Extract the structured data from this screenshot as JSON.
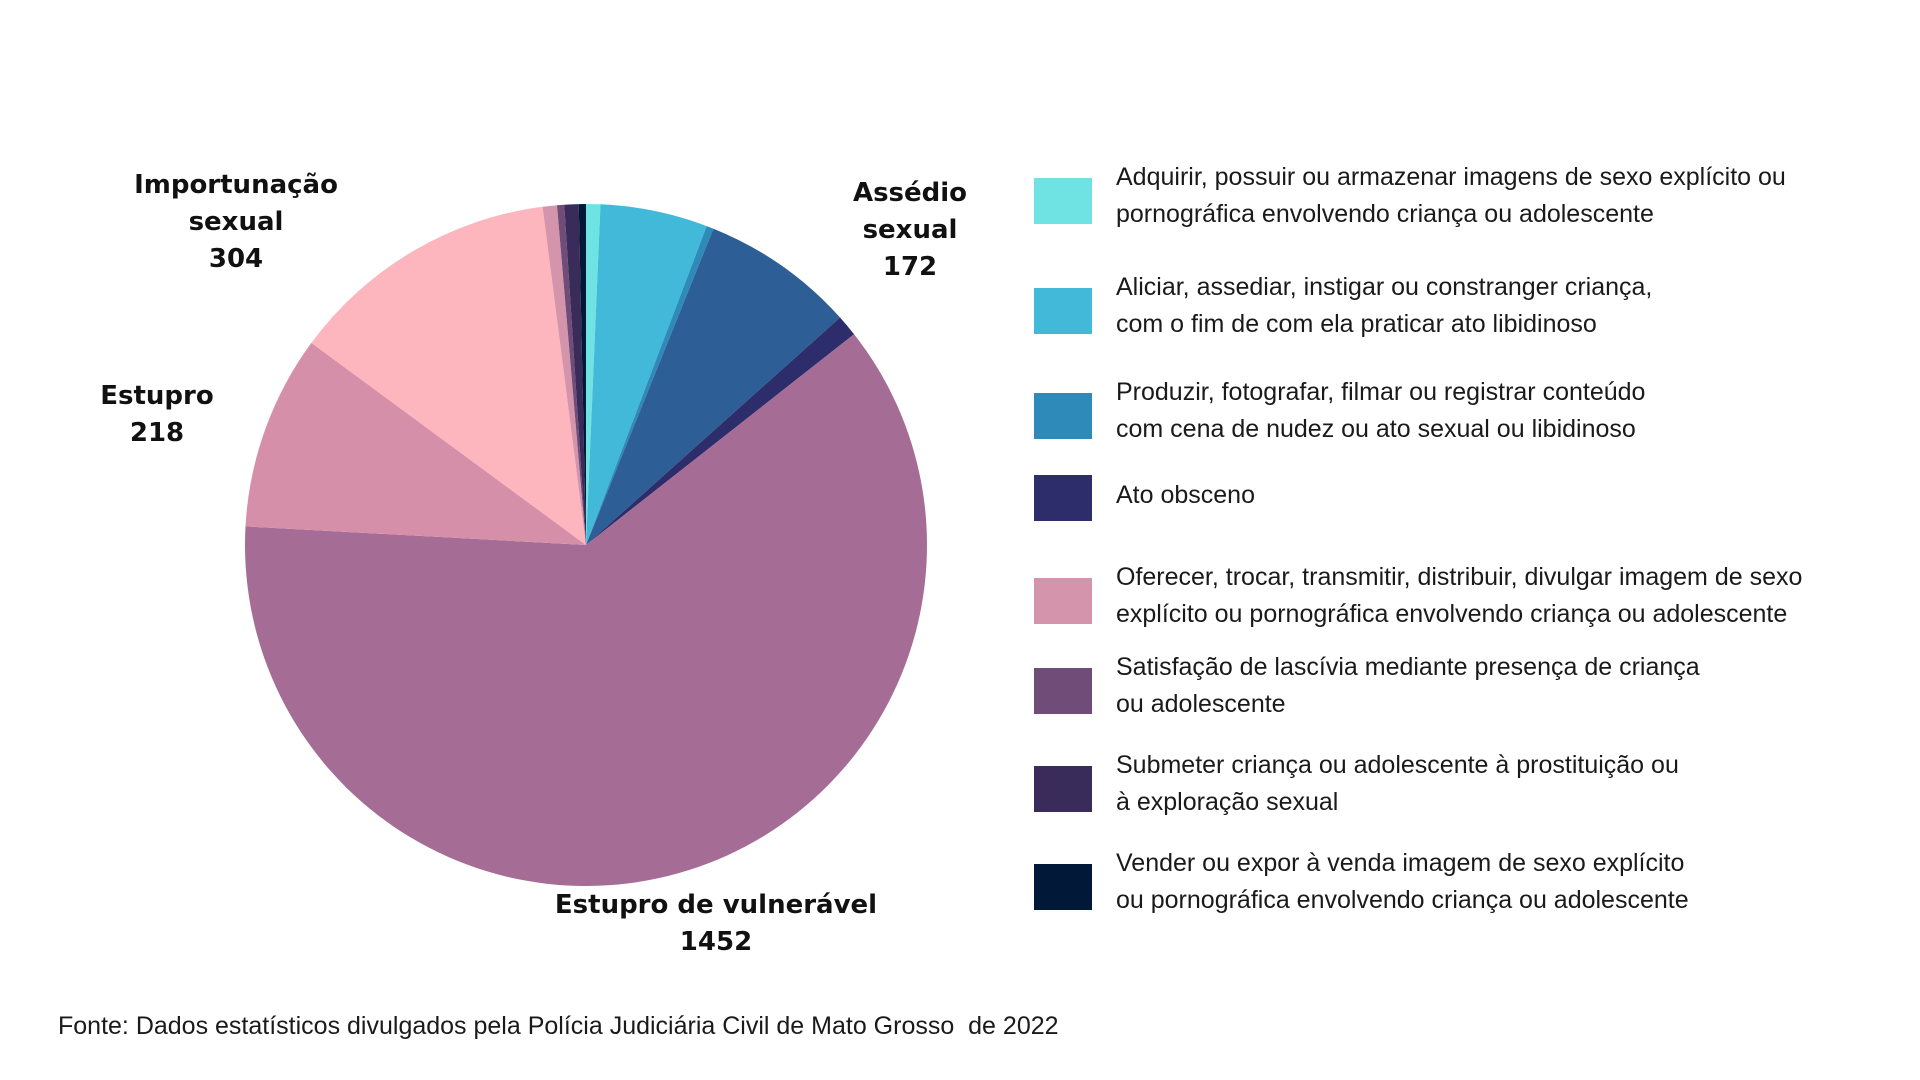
{
  "chart_data": {
    "type": "pie",
    "start_angle_deg": 0,
    "direction": "clockwise",
    "slices": [
      {
        "category": "Adquirir, possuir ou armazenar imagens de sexo explícito ou pornográfica envolvendo criança ou adolescente",
        "value": 16,
        "color": "#6fe3e3"
      },
      {
        "category": "Aliciar, assediar, instigar ou constranger criança, com o fim de com ela praticar ato libidinoso",
        "value": 120,
        "color": "#42b9d8"
      },
      {
        "category": "Produzir, fotografar, filmar ou registrar conteúdo com cena de nudez ou ato sexual ou libidinoso",
        "value": 8,
        "color": "#2e8ab8"
      },
      {
        "category": "Assédio sexual",
        "value": 172,
        "color": "#2e5e96"
      },
      {
        "category": "Ato obsceno",
        "value": 24,
        "color": "#2e2d6b"
      },
      {
        "category": "Estupro de vulnerável",
        "value": 1452,
        "color": "#a56d95"
      },
      {
        "category": "Estupro",
        "value": 218,
        "color": "#d68fa8"
      },
      {
        "category": "Importunação sexual",
        "value": 304,
        "color": "#fdb6bd"
      },
      {
        "category": "Oferecer, trocar, transmitir, distribuir, divulgar imagem de sexo explícito ou pornográfica envolvendo criança ou adolescente",
        "value": 16,
        "color": "#d494ab"
      },
      {
        "category": "Satisfação de lascívia mediante presença de criança ou adolescente",
        "value": 8,
        "color": "#704c78"
      },
      {
        "category": "Submeter criança ou adolescente à prostituição ou à exploração sexual",
        "value": 16,
        "color": "#3a2c5a"
      },
      {
        "category": "Vender ou expor à venda imagem de sexo explícito ou pornográfica envolvendo criança ou adolescente",
        "value": 8,
        "color": "#021838"
      }
    ],
    "data_labels": [
      {
        "name_lines": [
          "Assédio",
          "sexual"
        ],
        "value": "172"
      },
      {
        "name_lines": [
          "Estupro de vulnerável"
        ],
        "value": "1452"
      },
      {
        "name_lines": [
          "Estupro"
        ],
        "value": "218"
      },
      {
        "name_lines": [
          "Importunação",
          "sexual"
        ],
        "value": "304"
      }
    ],
    "legend_placement": "right"
  },
  "legend": {
    "items": [
      {
        "lines": [
          "Adquirir, possuir ou armazenar imagens de sexo explícito ou",
          "pornográfica envolvendo criança ou adolescente"
        ],
        "color": "#6fe3e3"
      },
      {
        "lines": [
          "Aliciar, assediar, instigar ou constranger criança,",
          "com o fim de com ela praticar ato libidinoso"
        ],
        "color": "#42b9d8"
      },
      {
        "lines": [
          "Produzir, fotografar, filmar ou registrar conteúdo",
          "com cena de nudez ou ato sexual ou libidinoso"
        ],
        "color": "#2e8ab8"
      },
      {
        "lines": [
          "Ato obsceno"
        ],
        "color": "#2e2d6b"
      },
      {
        "lines": [
          "Oferecer, trocar, transmitir, distribuir, divulgar imagem de sexo",
          "explícito ou pornográfica envolvendo criança ou adolescente"
        ],
        "color": "#d494ab"
      },
      {
        "lines": [
          "Satisfação de lascívia mediante presença de criança",
          "ou adolescente"
        ],
        "color": "#704c78"
      },
      {
        "lines": [
          "Submeter criança ou adolescente à prostituição ou",
          "à exploração sexual"
        ],
        "color": "#3a2c5a"
      },
      {
        "lines": [
          "Vender ou expor à venda imagem de sexo explícito",
          "ou pornográfica envolvendo criança ou adolescente"
        ],
        "color": "#021838"
      }
    ]
  },
  "source": "Fonte: Dados estatísticos divulgados pela Polícia Judiciária Civil de Mato Grosso  de 2022"
}
